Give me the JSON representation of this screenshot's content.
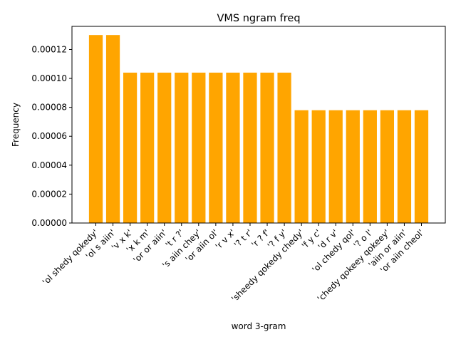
{
  "chart_data": {
    "type": "bar",
    "title": "VMS ngram freq",
    "xlabel": "word 3-gram",
    "ylabel": "Frequency",
    "ylim": [
      0,
      0.000136
    ],
    "yticks": [
      0,
      2e-05,
      4e-05,
      6e-05,
      8e-05,
      0.0001,
      0.00012
    ],
    "ytick_labels": [
      "0.00000",
      "0.00002",
      "0.00004",
      "0.00006",
      "0.00008",
      "0.00010",
      "0.00012"
    ],
    "grid": false,
    "bar_color": "#ffa500",
    "categories": [
      "'ol shedy qokedy'",
      "'ol s aiin'",
      "'v x k'",
      "'x k m'",
      "'or or aiin'",
      "'t r ?'",
      "'s aiin chey'",
      "'or aiin ol'",
      "'r v x'",
      "'? t r'",
      "'r ? f'",
      "'? f y'",
      "'sheedy qokedy chedy'",
      "'f y c'",
      "'d r v'",
      "'ol chedy qol'",
      "'? o l'",
      "'chedy qokeey qokeey'",
      "'aiin or aiin'",
      "'or aiin cheol'"
    ],
    "values": [
      0.00013,
      0.00013,
      0.000104,
      0.000104,
      0.000104,
      0.000104,
      0.000104,
      0.000104,
      0.000104,
      0.000104,
      0.000104,
      0.000104,
      7.8e-05,
      7.8e-05,
      7.8e-05,
      7.8e-05,
      7.8e-05,
      7.8e-05,
      7.8e-05,
      7.8e-05
    ]
  }
}
